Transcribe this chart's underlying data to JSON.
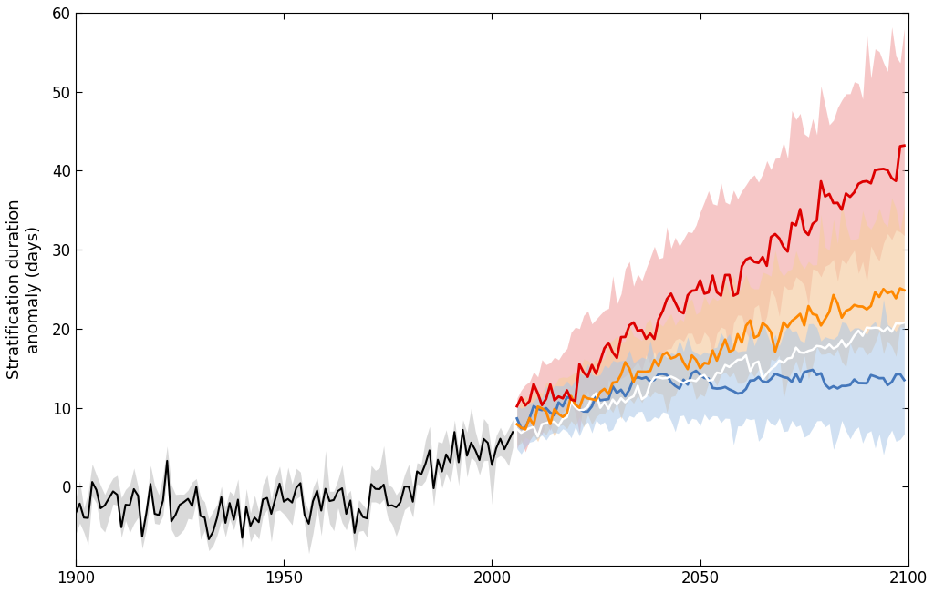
{
  "ylabel": "Stratification duration\nanomaly (days)",
  "xlim": [
    1900,
    2100
  ],
  "ylim": [
    -10,
    60
  ],
  "yticks": [
    0,
    10,
    20,
    30,
    40,
    50,
    60
  ],
  "xticks": [
    1900,
    1950,
    2000,
    2050,
    2100
  ],
  "hist_start": 1900,
  "hist_end": 2005,
  "proj_start": 2006,
  "proj_end": 2099,
  "colors": {
    "black": "#000000",
    "gray_line": "#888888",
    "gray_fill": "#bbbbbb",
    "red": "#dd0000",
    "red_fill": "#f2aaaa",
    "orange": "#ff8800",
    "orange_fill": "#f5cca0",
    "blue": "#4477bb",
    "blue_fill": "#aac8e8",
    "white_line": "#ffffff",
    "beige_fill": "#d8cfc0"
  }
}
